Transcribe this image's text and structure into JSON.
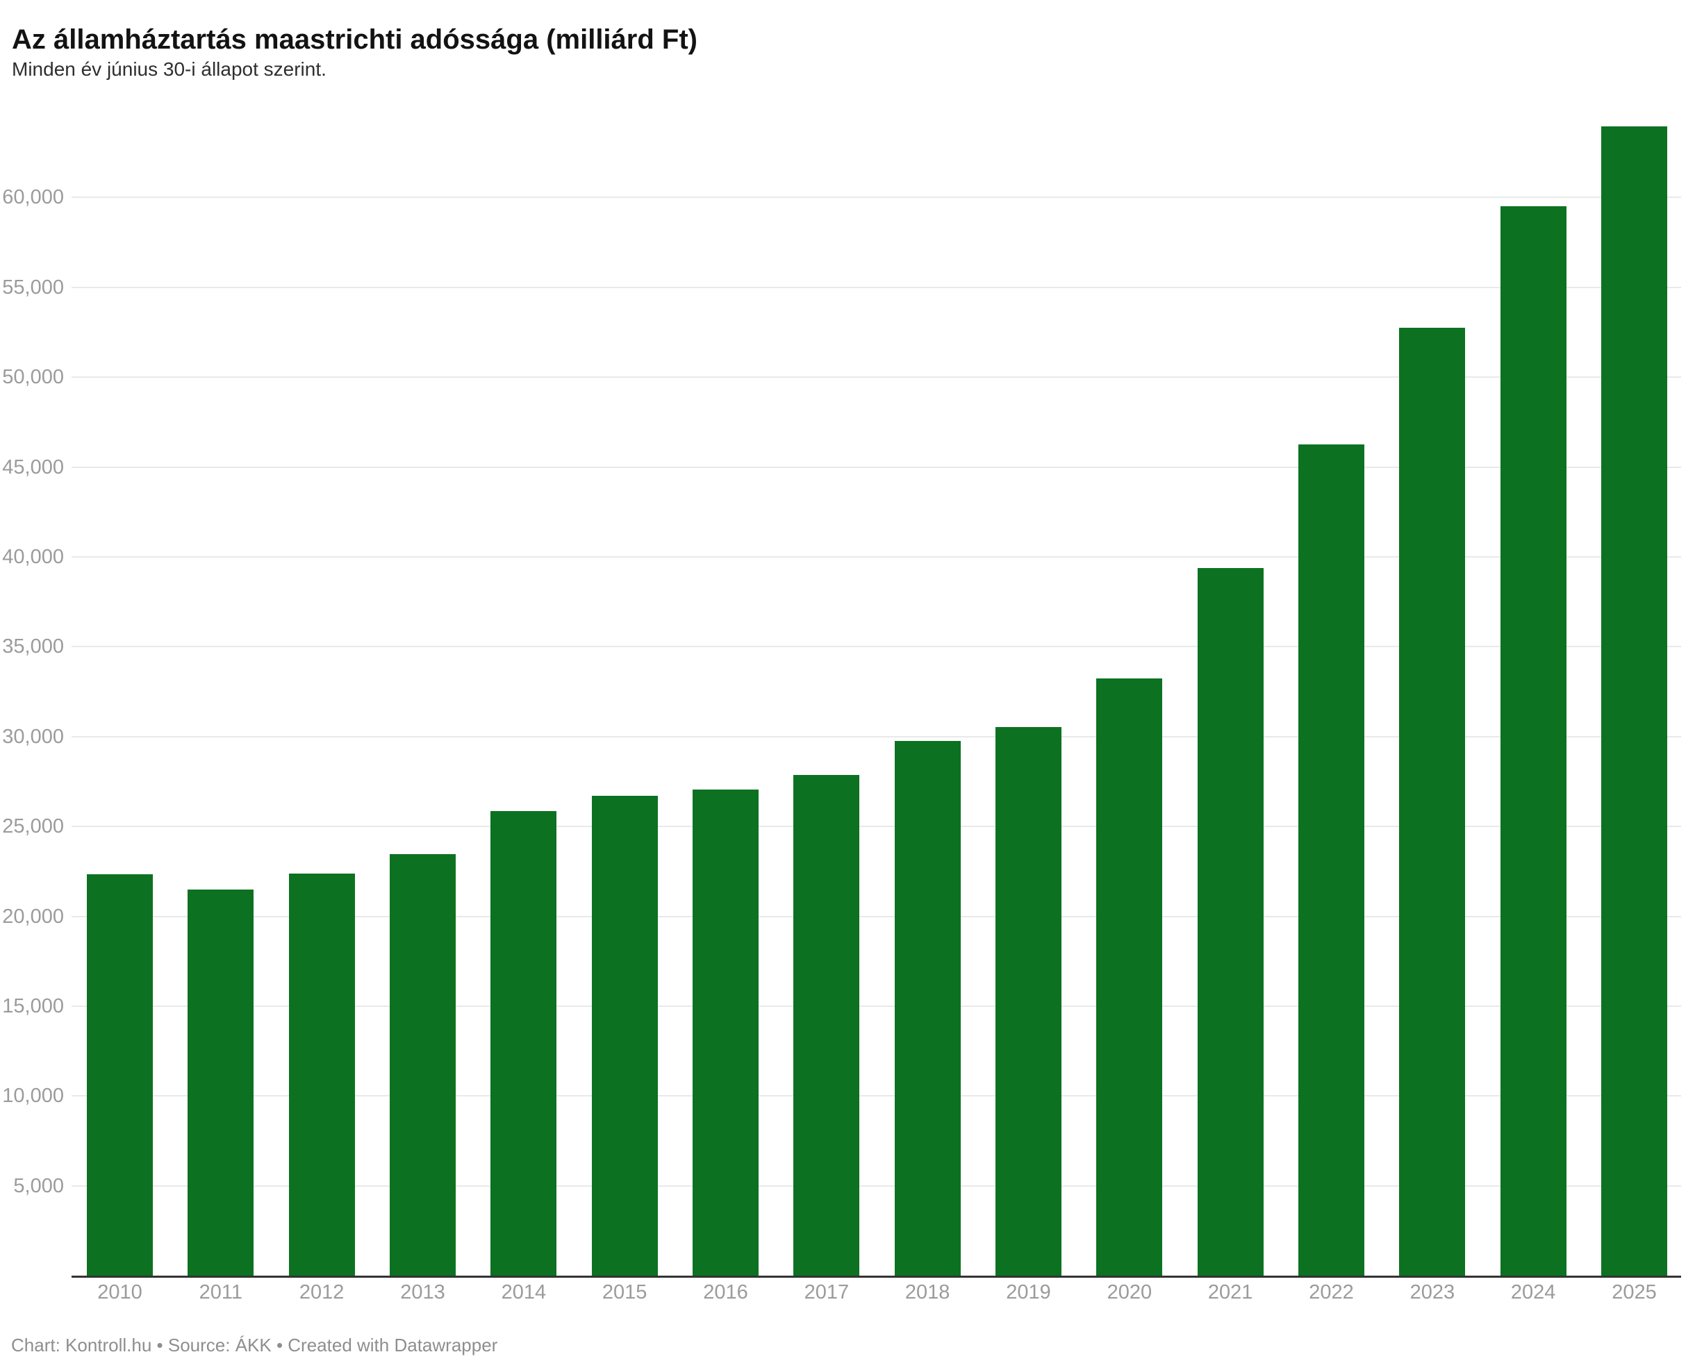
{
  "header": {
    "title": "Az államháztartás maastrichti adóssága (milliárd Ft)",
    "subtitle": "Minden év június 30-i állapot szerint."
  },
  "footer": {
    "text": "Chart: Kontroll.hu • Source: ÁKK • Created with Datawrapper"
  },
  "chart_data": {
    "type": "bar",
    "title": "Az államháztartás maastrichti adóssága (milliárd Ft)",
    "subtitle": "Minden év június 30-i állapot szerint.",
    "categories": [
      "2010",
      "2011",
      "2012",
      "2013",
      "2014",
      "2015",
      "2016",
      "2017",
      "2018",
      "2019",
      "2020",
      "2021",
      "2022",
      "2023",
      "2024",
      "2025"
    ],
    "values": [
      22350,
      21500,
      22400,
      23470,
      25840,
      26690,
      27040,
      27880,
      29770,
      30540,
      33250,
      39370,
      46250,
      52750,
      59510,
      63960
    ],
    "xlabel": "",
    "ylabel": "",
    "ylim": [
      0,
      65200
    ],
    "yticks": [
      5000,
      10000,
      15000,
      20000,
      25000,
      30000,
      35000,
      40000,
      45000,
      50000,
      55000,
      60000
    ],
    "ytick_labels": [
      "5,000",
      "10,000",
      "15,000",
      "20,000",
      "25,000",
      "30,000",
      "35,000",
      "40,000",
      "45,000",
      "50,000",
      "55,000",
      "60,000"
    ],
    "grid": true,
    "legend": "none",
    "bar_color": "#0c7221"
  }
}
